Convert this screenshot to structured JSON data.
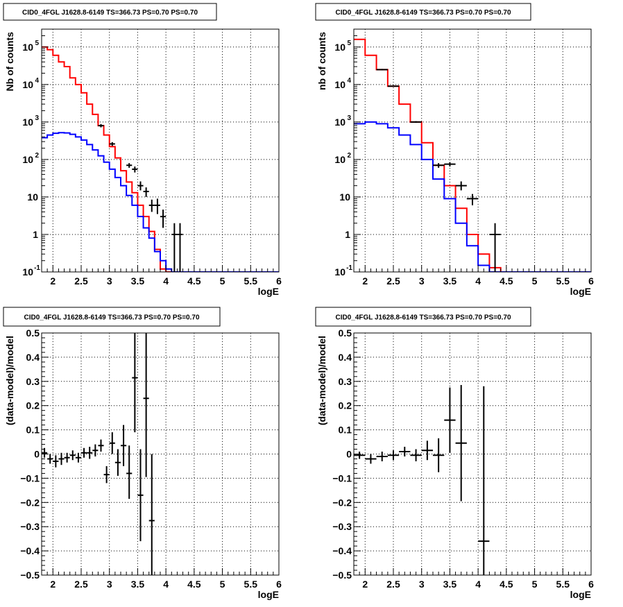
{
  "chart_data": [
    {
      "type": "histogram",
      "title": "CID0_4FGL J1628.8-6149 TS=366.73 PS=0.70 PS=0.70",
      "xlabel": "logE",
      "ylabel": "Nb of counts",
      "xlim": [
        1.8,
        6.0
      ],
      "ylim": [
        0.1,
        300000
      ],
      "log_y": true,
      "grid": true,
      "x_ticks": [
        "2",
        "2.5",
        "3",
        "3.5",
        "4",
        "4.5",
        "5",
        "5.5",
        "6"
      ],
      "y_ticks": [
        {
          "base": "10",
          "exp": "-1",
          "value": 0.1
        },
        {
          "base": "1",
          "exp": "",
          "value": 1
        },
        {
          "base": "10",
          "exp": "",
          "value": 10
        },
        {
          "base": "10",
          "exp": "2",
          "value": 100
        },
        {
          "base": "10",
          "exp": "3",
          "value": 1000
        },
        {
          "base": "10",
          "exp": "4",
          "value": 10000
        },
        {
          "base": "10",
          "exp": "5",
          "value": 100000
        }
      ],
      "bin_width": 0.1,
      "bins_start": 1.8,
      "series": [
        {
          "kind": "step",
          "color": "#ff0000",
          "values": [
            100000,
            85000,
            60000,
            40000,
            30000,
            15000,
            10000,
            6000,
            3000,
            1600,
            800,
            450,
            220,
            110,
            50,
            25,
            13,
            6,
            3,
            1.2,
            0.4,
            0.12,
            0.1,
            0.1,
            0.1,
            0.1,
            0.1,
            0.1,
            0.1,
            0.1,
            0.1,
            0.1,
            0.1,
            0.1,
            0.1,
            0.1,
            0.1,
            0.1,
            0.1,
            0.1,
            0.1,
            0.1
          ]
        },
        {
          "kind": "step",
          "color": "#0000ff",
          "values": [
            380,
            450,
            500,
            520,
            510,
            470,
            400,
            330,
            250,
            180,
            125,
            85,
            55,
            33,
            20,
            11,
            6,
            3,
            1.5,
            0.8,
            0.35,
            0.2,
            0.12,
            0.1,
            0.1,
            0.1,
            0.1,
            0.1,
            0.1,
            0.1,
            0.1,
            0.1,
            0.1,
            0.1,
            0.1,
            0.1,
            0.1,
            0.1,
            0.1,
            0.1,
            0.1,
            0.1
          ]
        },
        {
          "kind": "points",
          "color": "#000000",
          "points": [
            {
              "x": 2.85,
              "y": 800,
              "lo": 720,
              "hi": 880
            },
            {
              "x": 3.05,
              "y": 260,
              "lo": 230,
              "hi": 290
            },
            {
              "x": 3.35,
              "y": 70,
              "lo": 60,
              "hi": 80
            },
            {
              "x": 3.45,
              "y": 55,
              "lo": 45,
              "hi": 65
            },
            {
              "x": 3.55,
              "y": 20,
              "lo": 15,
              "hi": 26
            },
            {
              "x": 3.65,
              "y": 14,
              "lo": 10,
              "hi": 18
            },
            {
              "x": 3.75,
              "y": 6,
              "lo": 4,
              "hi": 8.5
            },
            {
              "x": 3.85,
              "y": 6,
              "lo": 3.5,
              "hi": 9
            },
            {
              "x": 3.95,
              "y": 3,
              "lo": 1.5,
              "hi": 4.6
            },
            {
              "x": 4.15,
              "y": 1,
              "lo": 0.1,
              "hi": 2
            },
            {
              "x": 4.25,
              "y": 1,
              "lo": 0.1,
              "hi": 2
            }
          ]
        }
      ]
    },
    {
      "type": "histogram",
      "title": "CID0_4FGL J1628.8-6149 TS=366.73 PS=0.70 PS=0.70",
      "xlabel": "logE",
      "ylabel": "nb of counts",
      "xlim": [
        1.8,
        6.0
      ],
      "ylim": [
        0.1,
        300000
      ],
      "log_y": true,
      "grid": true,
      "x_ticks": [
        "2",
        "2.5",
        "3",
        "3.5",
        "4",
        "4.5",
        "5",
        "5.5",
        "6"
      ],
      "y_ticks": [
        {
          "base": "10",
          "exp": "-1",
          "value": 0.1
        },
        {
          "base": "1",
          "exp": "",
          "value": 1
        },
        {
          "base": "10",
          "exp": "",
          "value": 10
        },
        {
          "base": "10",
          "exp": "2",
          "value": 100
        },
        {
          "base": "10",
          "exp": "3",
          "value": 1000
        },
        {
          "base": "10",
          "exp": "4",
          "value": 10000
        },
        {
          "base": "10",
          "exp": "5",
          "value": 100000
        }
      ],
      "bin_width": 0.2,
      "bins_start": 1.8,
      "series": [
        {
          "kind": "step",
          "color": "#ff0000",
          "values": [
            160000,
            60000,
            25000,
            9000,
            3000,
            1000,
            280,
            70,
            20,
            5,
            1,
            0.3,
            0.13,
            0.1,
            0.1,
            0.1,
            0.1,
            0.1,
            0.1,
            0.1,
            0.1
          ]
        },
        {
          "kind": "step",
          "color": "#0000ff",
          "values": [
            900,
            1000,
            900,
            700,
            450,
            250,
            100,
            30,
            9,
            2,
            0.5,
            0.15,
            0.1,
            0.1,
            0.1,
            0.1,
            0.1,
            0.1,
            0.1,
            0.1,
            0.1
          ]
        },
        {
          "kind": "points",
          "color": "#000000",
          "points": [
            {
              "x": 2.3,
              "y": 25000,
              "lo": 24000,
              "hi": 26000
            },
            {
              "x": 2.5,
              "y": 9000,
              "lo": 8800,
              "hi": 9200
            },
            {
              "x": 2.9,
              "y": 1000,
              "lo": 950,
              "hi": 1050
            },
            {
              "x": 3.3,
              "y": 70,
              "lo": 60,
              "hi": 80
            },
            {
              "x": 3.5,
              "y": 75,
              "lo": 65,
              "hi": 85
            },
            {
              "x": 3.7,
              "y": 20,
              "lo": 15,
              "hi": 26
            },
            {
              "x": 3.9,
              "y": 9,
              "lo": 6,
              "hi": 12
            },
            {
              "x": 4.3,
              "y": 1,
              "lo": 0.1,
              "hi": 2
            }
          ]
        }
      ]
    },
    {
      "type": "scatter",
      "title": "CID0_4FGL J1628.8-6149 TS=366.73 PS=0.70 PS=0.70",
      "xlabel": "logE",
      "ylabel": "(data-model)/model",
      "xlim": [
        1.8,
        6.0
      ],
      "ylim": [
        -0.5,
        0.5
      ],
      "grid": true,
      "x_ticks": [
        "2",
        "2.5",
        "3",
        "3.5",
        "4",
        "4.5",
        "5",
        "5.5",
        "6"
      ],
      "y_ticks": [
        "-0.5",
        "-0.4",
        "-0.3",
        "-0.2",
        "-0.1",
        "0",
        "0.1",
        "0.2",
        "0.3",
        "0.4",
        "0.5"
      ],
      "x_halfwidth": 0.05,
      "points": [
        {
          "x": 1.85,
          "y": 0.005,
          "lo": -0.015,
          "hi": 0.025
        },
        {
          "x": 1.95,
          "y": -0.02,
          "lo": -0.04,
          "hi": 0.0
        },
        {
          "x": 2.05,
          "y": -0.03,
          "lo": -0.055,
          "hi": -0.005
        },
        {
          "x": 2.15,
          "y": -0.02,
          "lo": -0.045,
          "hi": 0.005
        },
        {
          "x": 2.25,
          "y": -0.015,
          "lo": -0.035,
          "hi": 0.005
        },
        {
          "x": 2.35,
          "y": -0.005,
          "lo": -0.025,
          "hi": 0.015
        },
        {
          "x": 2.45,
          "y": -0.015,
          "lo": -0.035,
          "hi": 0.005
        },
        {
          "x": 2.55,
          "y": 0.005,
          "lo": -0.015,
          "hi": 0.025
        },
        {
          "x": 2.65,
          "y": 0.005,
          "lo": -0.02,
          "hi": 0.03
        },
        {
          "x": 2.75,
          "y": 0.015,
          "lo": -0.01,
          "hi": 0.04
        },
        {
          "x": 2.85,
          "y": 0.035,
          "lo": 0.01,
          "hi": 0.06
        },
        {
          "x": 2.95,
          "y": -0.085,
          "lo": -0.12,
          "hi": -0.05
        },
        {
          "x": 3.05,
          "y": 0.045,
          "lo": 0.0,
          "hi": 0.09
        },
        {
          "x": 3.15,
          "y": -0.035,
          "lo": -0.09,
          "hi": 0.02
        },
        {
          "x": 3.25,
          "y": 0.035,
          "lo": -0.05,
          "hi": 0.12
        },
        {
          "x": 3.35,
          "y": -0.08,
          "lo": -0.185,
          "hi": 0.035
        },
        {
          "x": 3.45,
          "y": 0.315,
          "lo": 0.09,
          "hi": 0.5
        },
        {
          "x": 3.55,
          "y": -0.17,
          "lo": -0.36,
          "hi": 0.02
        },
        {
          "x": 3.65,
          "y": 0.23,
          "lo": -0.095,
          "hi": 0.5
        },
        {
          "x": 3.75,
          "y": -0.275,
          "lo": -0.5,
          "hi": 0.0
        }
      ]
    },
    {
      "type": "scatter",
      "title": "CID0_4FGL J1628.8-6149 TS=366.73 PS=0.70 PS=0.70",
      "xlabel": "logE",
      "ylabel": "(data-model)/model",
      "xlim": [
        1.8,
        6.0
      ],
      "ylim": [
        -0.5,
        0.5
      ],
      "grid": true,
      "x_ticks": [
        "2",
        "2.5",
        "3",
        "3.5",
        "4",
        "4.5",
        "5",
        "5.5",
        "6"
      ],
      "y_ticks": [
        "-0.5",
        "-0.4",
        "-0.3",
        "-0.2",
        "-0.1",
        "0",
        "0.1",
        "0.2",
        "0.3",
        "0.4",
        "0.5"
      ],
      "x_halfwidth": 0.1,
      "points": [
        {
          "x": 1.9,
          "y": -0.005,
          "lo": -0.02,
          "hi": 0.01
        },
        {
          "x": 2.1,
          "y": -0.02,
          "lo": -0.04,
          "hi": 0.0
        },
        {
          "x": 2.3,
          "y": -0.01,
          "lo": -0.03,
          "hi": 0.01
        },
        {
          "x": 2.5,
          "y": -0.005,
          "lo": -0.025,
          "hi": 0.015
        },
        {
          "x": 2.7,
          "y": 0.01,
          "lo": -0.01,
          "hi": 0.03
        },
        {
          "x": 2.9,
          "y": -0.005,
          "lo": -0.03,
          "hi": 0.02
        },
        {
          "x": 3.1,
          "y": 0.015,
          "lo": -0.025,
          "hi": 0.055
        },
        {
          "x": 3.3,
          "y": -0.005,
          "lo": -0.075,
          "hi": 0.065
        },
        {
          "x": 3.5,
          "y": 0.14,
          "lo": 0.005,
          "hi": 0.275
        },
        {
          "x": 3.7,
          "y": 0.045,
          "lo": -0.195,
          "hi": 0.285
        },
        {
          "x": 4.1,
          "y": -0.36,
          "lo": -0.5,
          "hi": 0.28
        }
      ]
    }
  ]
}
